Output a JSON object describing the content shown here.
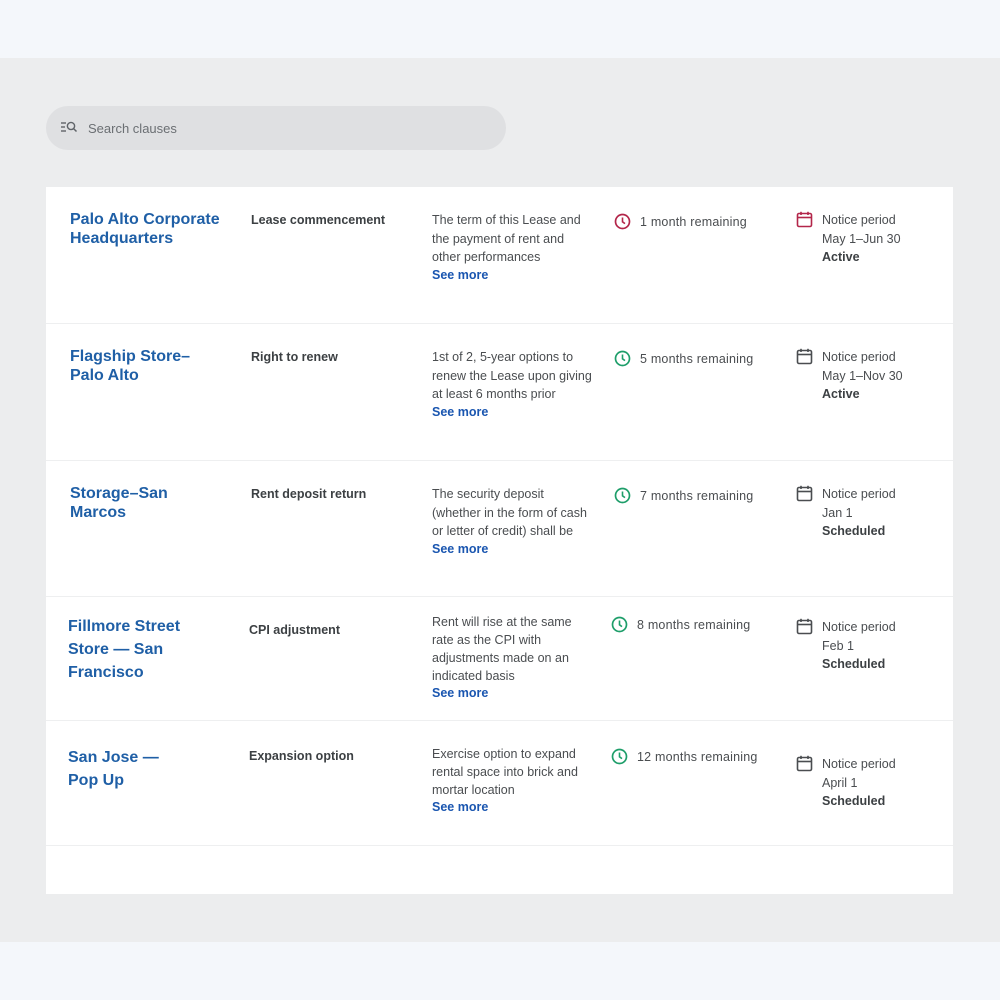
{
  "search": {
    "placeholder": "Search clauses",
    "icon": "search-filter-icon"
  },
  "colors": {
    "link": "#1f5fa6",
    "urgent": "#b3264a",
    "ok": "#1e9e6a"
  },
  "rows": [
    {
      "location": "Palo Alto Corporate Headquarters",
      "clause": "Lease commencement",
      "description": "The term of this Lease and the payment of rent and other performances",
      "see_more": "See more",
      "remaining": "1 month remaining",
      "remaining_status": "urgent",
      "notice_label": "Notice period",
      "notice_dates": "May 1–Jun 30",
      "notice_status": "Active"
    },
    {
      "location": "Flagship Store–Palo Alto",
      "clause": "Right to renew",
      "description": "1st of 2, 5-year options to renew the Lease upon giving at least 6 months prior",
      "see_more": "See more",
      "remaining": "5 months remaining",
      "remaining_status": "ok",
      "notice_label": "Notice period",
      "notice_dates": "May 1–Nov 30",
      "notice_status": "Active"
    },
    {
      "location": "Storage–San Marcos",
      "clause": "Rent deposit return",
      "description": "The security deposit (whether in the form of cash or letter of credit) shall be",
      "see_more": "See more",
      "remaining": "7 months remaining",
      "remaining_status": "ok",
      "notice_label": "Notice period",
      "notice_dates": "Jan 1",
      "notice_status": "Scheduled"
    },
    {
      "location": "Fillmore Street Store — San Francisco",
      "clause": "CPI adjustment",
      "description": "Rent will rise at the same rate as the CPI with adjustments made on an indicated basis",
      "see_more": "See more",
      "remaining": "8 months remaining",
      "remaining_status": "ok",
      "notice_label": "Notice period",
      "notice_dates": "Feb 1",
      "notice_status": "Scheduled"
    },
    {
      "location": "San Jose — Pop Up",
      "clause": "Expansion option",
      "description": "Exercise option to expand rental space into brick and mortar location",
      "see_more": "See more",
      "remaining": "12 months remaining",
      "remaining_status": "ok",
      "notice_label": "Notice period",
      "notice_dates": "April 1",
      "notice_status": "Scheduled"
    }
  ]
}
